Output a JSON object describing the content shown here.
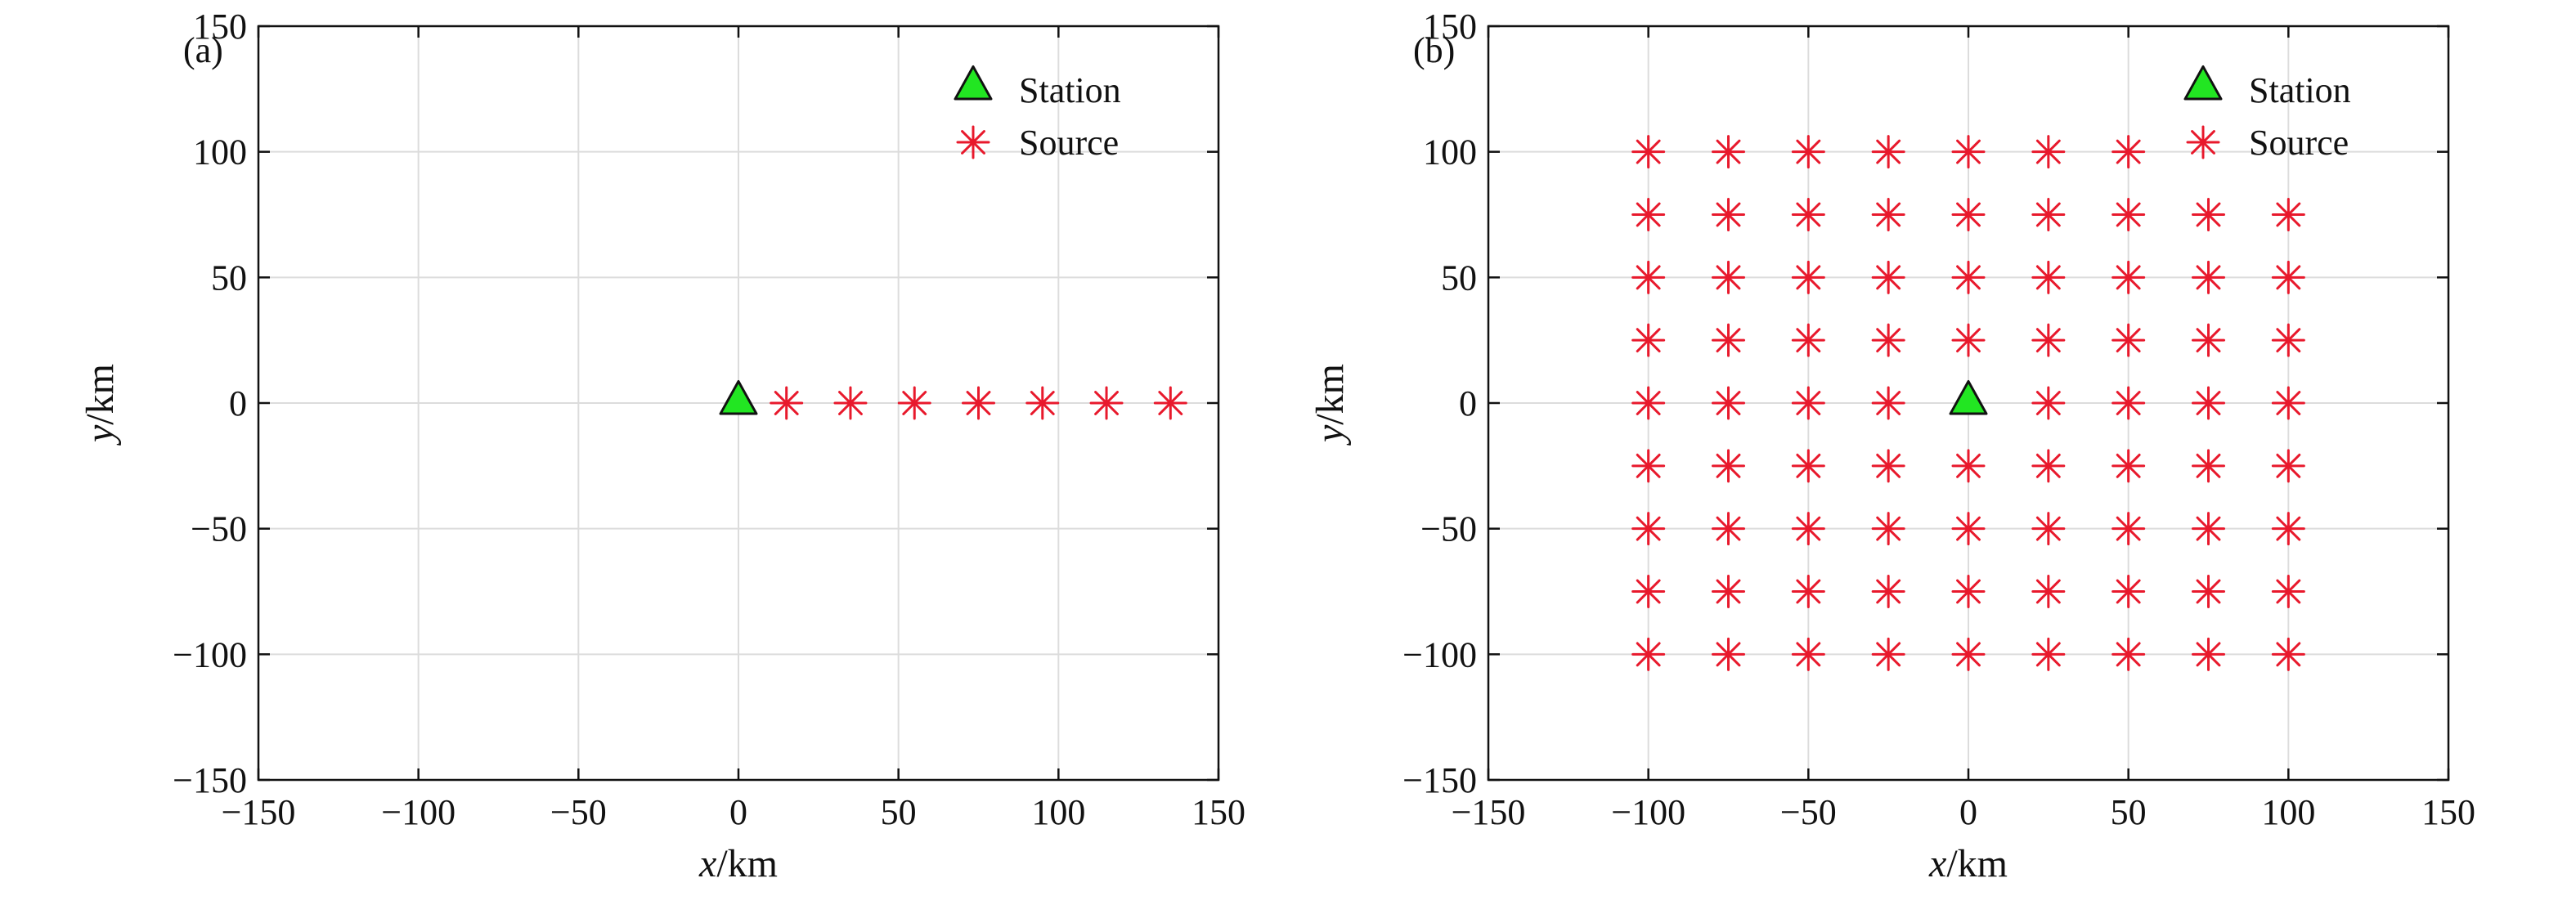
{
  "chart_data": [
    {
      "type": "scatter",
      "panel_label": "(a)",
      "xlabel_var": "x",
      "xlabel_unit": "/km",
      "ylabel_var": "y",
      "ylabel_unit": "/km",
      "xlim": [
        -150,
        150
      ],
      "ylim": [
        -150,
        150
      ],
      "x_ticks": [
        -150,
        -100,
        -50,
        0,
        50,
        100,
        150
      ],
      "y_ticks": [
        -150,
        -100,
        -50,
        0,
        50,
        100,
        150
      ],
      "grid": true,
      "legend_position": "top-right",
      "legend": [
        {
          "label": "Station",
          "marker": "triangle"
        },
        {
          "label": "Source",
          "marker": "asterisk"
        }
      ],
      "series": [
        {
          "name": "Station",
          "marker": "triangle",
          "points": [
            {
              "x": 0,
              "y": 0
            }
          ]
        },
        {
          "name": "Source",
          "marker": "asterisk",
          "points": [
            {
              "x": 15,
              "y": 0
            },
            {
              "x": 35,
              "y": 0
            },
            {
              "x": 55,
              "y": 0
            },
            {
              "x": 75,
              "y": 0
            },
            {
              "x": 95,
              "y": 0
            },
            {
              "x": 115,
              "y": 0
            },
            {
              "x": 135,
              "y": 0
            }
          ]
        }
      ]
    },
    {
      "type": "scatter",
      "panel_label": "(b)",
      "xlabel_var": "x",
      "xlabel_unit": "/km",
      "ylabel_var": "y",
      "ylabel_unit": "/km",
      "xlim": [
        -150,
        150
      ],
      "ylim": [
        -150,
        150
      ],
      "x_ticks": [
        -150,
        -100,
        -50,
        0,
        50,
        100,
        150
      ],
      "y_ticks": [
        -150,
        -100,
        -50,
        0,
        50,
        100,
        150
      ],
      "grid": true,
      "legend_position": "top-right",
      "legend": [
        {
          "label": "Station",
          "marker": "triangle"
        },
        {
          "label": "Source",
          "marker": "asterisk"
        }
      ],
      "series": [
        {
          "name": "Station",
          "marker": "triangle",
          "points": [
            {
              "x": 0,
              "y": 0
            }
          ]
        },
        {
          "name": "Source",
          "marker": "asterisk",
          "points": [
            {
              "x": -100,
              "y": 100
            },
            {
              "x": -75,
              "y": 100
            },
            {
              "x": -50,
              "y": 100
            },
            {
              "x": -25,
              "y": 100
            },
            {
              "x": 0,
              "y": 100
            },
            {
              "x": 25,
              "y": 100
            },
            {
              "x": 50,
              "y": 100
            },
            {
              "x": -100,
              "y": 75
            },
            {
              "x": -75,
              "y": 75
            },
            {
              "x": -50,
              "y": 75
            },
            {
              "x": -25,
              "y": 75
            },
            {
              "x": 0,
              "y": 75
            },
            {
              "x": 25,
              "y": 75
            },
            {
              "x": 50,
              "y": 75
            },
            {
              "x": 75,
              "y": 75
            },
            {
              "x": 100,
              "y": 75
            },
            {
              "x": -100,
              "y": 50
            },
            {
              "x": -75,
              "y": 50
            },
            {
              "x": -50,
              "y": 50
            },
            {
              "x": -25,
              "y": 50
            },
            {
              "x": 0,
              "y": 50
            },
            {
              "x": 25,
              "y": 50
            },
            {
              "x": 50,
              "y": 50
            },
            {
              "x": 75,
              "y": 50
            },
            {
              "x": 100,
              "y": 50
            },
            {
              "x": -100,
              "y": 25
            },
            {
              "x": -75,
              "y": 25
            },
            {
              "x": -50,
              "y": 25
            },
            {
              "x": -25,
              "y": 25
            },
            {
              "x": 0,
              "y": 25
            },
            {
              "x": 25,
              "y": 25
            },
            {
              "x": 50,
              "y": 25
            },
            {
              "x": 75,
              "y": 25
            },
            {
              "x": 100,
              "y": 25
            },
            {
              "x": -100,
              "y": 0
            },
            {
              "x": -75,
              "y": 0
            },
            {
              "x": -50,
              "y": 0
            },
            {
              "x": -25,
              "y": 0
            },
            {
              "x": 25,
              "y": 0
            },
            {
              "x": 50,
              "y": 0
            },
            {
              "x": 75,
              "y": 0
            },
            {
              "x": 100,
              "y": 0
            },
            {
              "x": -100,
              "y": -25
            },
            {
              "x": -75,
              "y": -25
            },
            {
              "x": -50,
              "y": -25
            },
            {
              "x": -25,
              "y": -25
            },
            {
              "x": 0,
              "y": -25
            },
            {
              "x": 25,
              "y": -25
            },
            {
              "x": 50,
              "y": -25
            },
            {
              "x": 75,
              "y": -25
            },
            {
              "x": 100,
              "y": -25
            },
            {
              "x": -100,
              "y": -50
            },
            {
              "x": -75,
              "y": -50
            },
            {
              "x": -50,
              "y": -50
            },
            {
              "x": -25,
              "y": -50
            },
            {
              "x": 0,
              "y": -50
            },
            {
              "x": 25,
              "y": -50
            },
            {
              "x": 50,
              "y": -50
            },
            {
              "x": 75,
              "y": -50
            },
            {
              "x": 100,
              "y": -50
            },
            {
              "x": -100,
              "y": -75
            },
            {
              "x": -75,
              "y": -75
            },
            {
              "x": -50,
              "y": -75
            },
            {
              "x": -25,
              "y": -75
            },
            {
              "x": 0,
              "y": -75
            },
            {
              "x": 25,
              "y": -75
            },
            {
              "x": 50,
              "y": -75
            },
            {
              "x": 75,
              "y": -75
            },
            {
              "x": 100,
              "y": -75
            },
            {
              "x": -100,
              "y": -100
            },
            {
              "x": -75,
              "y": -100
            },
            {
              "x": -50,
              "y": -100
            },
            {
              "x": -25,
              "y": -100
            },
            {
              "x": 0,
              "y": -100
            },
            {
              "x": 25,
              "y": -100
            },
            {
              "x": 50,
              "y": -100
            },
            {
              "x": 75,
              "y": -100
            },
            {
              "x": 100,
              "y": -100
            }
          ]
        }
      ]
    }
  ],
  "colors": {
    "station_fill": "#22e622",
    "station_edge": "#111111",
    "source_stroke": "#e8192c",
    "axis": "#111111",
    "grid": "#dcdcdc",
    "grid_strong": "#c8c8c8"
  }
}
